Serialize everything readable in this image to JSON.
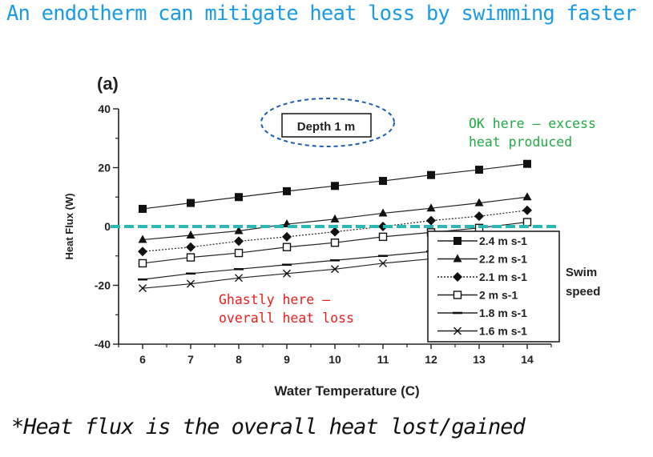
{
  "slide": {
    "title": "An endotherm can mitigate heat loss by swimming faster",
    "footnote": "*Heat flux is the overall heat lost/gained"
  },
  "annotations": {
    "panel_label": "(a)",
    "depth_label": "Depth 1 m",
    "ok_line1": "OK here – excess",
    "ok_line2": "heat produced",
    "ghastly_line1": "Ghastly here –",
    "ghastly_line2": "overall heat loss",
    "legend_title_line1": "Swim",
    "legend_title_line2": "speed",
    "colors": {
      "ok": "#22aa44",
      "ghastly": "#e8201c",
      "ellipse": "#1a5fb4",
      "zero_line": "#2ab7b7",
      "title": "#1a9be6"
    }
  },
  "chart_data": {
    "type": "line",
    "xlabel": "Water Temperature (C)",
    "ylabel": "Heat Flux (W)",
    "xlim": [
      5.5,
      14.5
    ],
    "ylim": [
      -40,
      40
    ],
    "xticks": [
      6,
      7,
      8,
      9,
      10,
      11,
      12,
      13,
      14
    ],
    "yticks": [
      -40,
      -20,
      0,
      20,
      40
    ],
    "x": [
      6,
      7,
      8,
      9,
      10,
      11,
      12,
      13,
      14
    ],
    "series": [
      {
        "name": "2.4 m s-1",
        "marker": "filled-square",
        "dash": "solid",
        "values": [
          6,
          8,
          10,
          12,
          13.8,
          15.5,
          17.5,
          19.3,
          21.3
        ]
      },
      {
        "name": "2.2 m s-1",
        "marker": "filled-triangle",
        "dash": "solid",
        "values": [
          -4.5,
          -3,
          -1.5,
          0.8,
          2.5,
          4.5,
          6.2,
          8,
          10
        ]
      },
      {
        "name": "2.1 m s-1",
        "marker": "filled-diamond",
        "dash": "dotted",
        "values": [
          -8.5,
          -7,
          -5,
          -3.5,
          -1.8,
          0,
          2,
          3.5,
          5.5
        ]
      },
      {
        "name": "2 m s-1",
        "marker": "open-square",
        "dash": "solid",
        "values": [
          -12.5,
          -10.5,
          -9,
          -7,
          -5.5,
          -3.5,
          -2,
          -0.5,
          1.5
        ]
      },
      {
        "name": "1.8 m s-1",
        "marker": "dash",
        "dash": "solid",
        "values": [
          -18,
          -16,
          -14.5,
          -13,
          -11.5,
          -10,
          -8.5,
          -7,
          -5.5
        ]
      },
      {
        "name": "1.6 m s-1",
        "marker": "x",
        "dash": "solid",
        "values": [
          -21,
          -19.5,
          -17.5,
          -16,
          -14.5,
          -12.5,
          -11,
          -9.5,
          -8
        ]
      }
    ],
    "grid": false,
    "legend": "lower-right"
  }
}
